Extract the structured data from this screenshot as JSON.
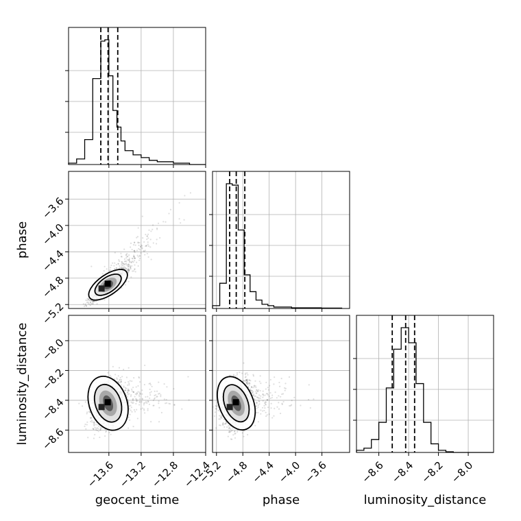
{
  "chart_data": {
    "type": "corner",
    "parameters": [
      "geocent_time",
      "phase",
      "luminosity_distance"
    ],
    "labels": {
      "geocent_time": "geocent_time",
      "phase": "phase",
      "luminosity_distance": "luminosity_distance"
    },
    "ranges": {
      "geocent_time": [
        -14.1,
        -12.4
      ],
      "phase": [
        -5.26,
        -3.18
      ],
      "luminosity_distance": [
        -8.75,
        -7.83
      ]
    },
    "ticks": {
      "geocent_time": [
        -13.6,
        -13.2,
        -12.8,
        -12.4
      ],
      "phase": [
        -5.2,
        -4.8,
        -4.4,
        -4.0,
        -3.6
      ],
      "luminosity_distance": [
        -8.6,
        -8.4,
        -8.2,
        -8.0
      ]
    },
    "tick_labels": {
      "geocent_time": [
        "−13.6",
        "−13.2",
        "−12.8",
        "−12.4"
      ],
      "phase": [
        "−5.2",
        "−4.8",
        "−4.4",
        "−4.0",
        "−3.6"
      ],
      "luminosity_distance": [
        "−8.6",
        "−8.4",
        "−8.2",
        "−8.0"
      ]
    },
    "quantiles": {
      "geocent_time": [
        -13.7,
        -13.61,
        -13.49
      ],
      "phase": [
        -5.0,
        -4.9,
        -4.77
      ],
      "luminosity_distance": [
        -8.51,
        -8.42,
        -8.36
      ]
    },
    "histograms": {
      "geocent_time": {
        "bin_edges": [
          -14.1,
          -14.0,
          -13.9,
          -13.8,
          -13.7,
          -13.65,
          -13.6,
          -13.55,
          -13.5,
          -13.45,
          -13.4,
          -13.3,
          -13.2,
          -13.1,
          -13.0,
          -12.9,
          -12.8,
          -12.7,
          -12.6,
          -12.5,
          -12.4
        ],
        "counts": [
          1,
          4,
          18,
          62,
          89,
          90,
          64,
          39,
          27,
          17,
          10,
          7,
          5,
          3,
          2,
          2,
          1,
          1,
          0,
          0
        ]
      },
      "phase": {
        "bin_edges": [
          -5.26,
          -5.15,
          -5.05,
          -4.96,
          -4.87,
          -4.78,
          -4.69,
          -4.6,
          -4.51,
          -4.42,
          -4.33,
          -4.24,
          -4.15,
          -4.06,
          -3.97,
          -3.88,
          -3.79,
          -3.7,
          -3.61,
          -3.52,
          -3.43,
          -3.3
        ],
        "counts": [
          2,
          18,
          89,
          88,
          56,
          24,
          12,
          6,
          3,
          2,
          1,
          1,
          1,
          0.5,
          0.5,
          0.5,
          0.5,
          0.5,
          0.3,
          0.3,
          0.3
        ]
      },
      "luminosity_distance": {
        "bin_edges": [
          -8.75,
          -8.7,
          -8.65,
          -8.6,
          -8.55,
          -8.5,
          -8.45,
          -8.4,
          -8.35,
          -8.3,
          -8.25,
          -8.2,
          -8.15,
          -8.1,
          -7.83
        ],
        "counts": [
          1,
          2,
          6,
          14,
          30,
          48,
          58,
          51,
          32,
          14,
          4,
          1,
          0.3,
          0
        ]
      }
    },
    "correlations": {
      "phase|geocent_time": 0.9,
      "luminosity_distance|geocent_time": 0.3,
      "luminosity_distance|phase": 0.3
    },
    "grid": true
  }
}
